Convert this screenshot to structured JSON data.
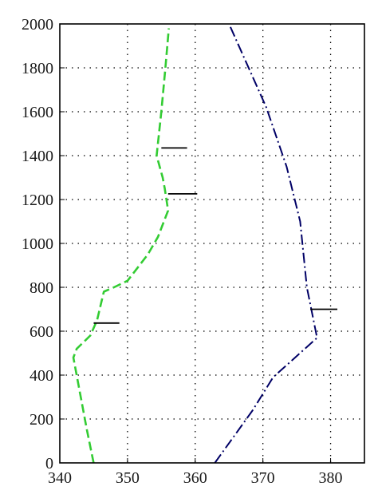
{
  "chart_data": {
    "type": "line",
    "title": "",
    "xlabel": "",
    "ylabel": "",
    "xlim": [
      340,
      385
    ],
    "ylim": [
      0,
      2000
    ],
    "xticks": [
      340,
      350,
      360,
      370,
      380
    ],
    "yticks": [
      0,
      200,
      400,
      600,
      800,
      1000,
      1200,
      1400,
      1600,
      1800,
      2000
    ],
    "grid": true,
    "grid_style": "dotted",
    "legend": "none",
    "series": [
      {
        "style": "dashed",
        "color": "#33cc33",
        "points": [
          [
            345.0,
            0
          ],
          [
            344.0,
            150
          ],
          [
            342.0,
            480
          ],
          [
            342.5,
            520
          ],
          [
            344.5,
            580
          ],
          [
            345.5,
            650
          ],
          [
            346.5,
            780
          ],
          [
            348.0,
            800
          ],
          [
            350.0,
            830
          ],
          [
            351.0,
            870
          ],
          [
            353.0,
            950
          ],
          [
            354.5,
            1030
          ],
          [
            356.0,
            1150
          ],
          [
            355.5,
            1250
          ],
          [
            355.2,
            1300
          ],
          [
            354.3,
            1400
          ],
          [
            355.0,
            1600
          ],
          [
            355.6,
            1800
          ],
          [
            356.1,
            1980
          ]
        ]
      },
      {
        "style": "dash-dot",
        "color": "#000066",
        "points": [
          [
            362.9,
            0
          ],
          [
            368.5,
            240
          ],
          [
            371.5,
            390
          ],
          [
            378.0,
            570
          ],
          [
            376.5,
            800
          ],
          [
            375.5,
            1100
          ],
          [
            373.5,
            1350
          ],
          [
            370.5,
            1620
          ],
          [
            365.0,
            2000
          ]
        ]
      }
    ],
    "markers": [
      {
        "x": [
          345.0,
          348.8
        ],
        "y": 637
      },
      {
        "x": [
          355.0,
          358.8
        ],
        "y": 1435
      },
      {
        "x": [
          356.0,
          360.3
        ],
        "y": 1226
      },
      {
        "x": [
          377.0,
          381.0
        ],
        "y": 700
      }
    ]
  }
}
